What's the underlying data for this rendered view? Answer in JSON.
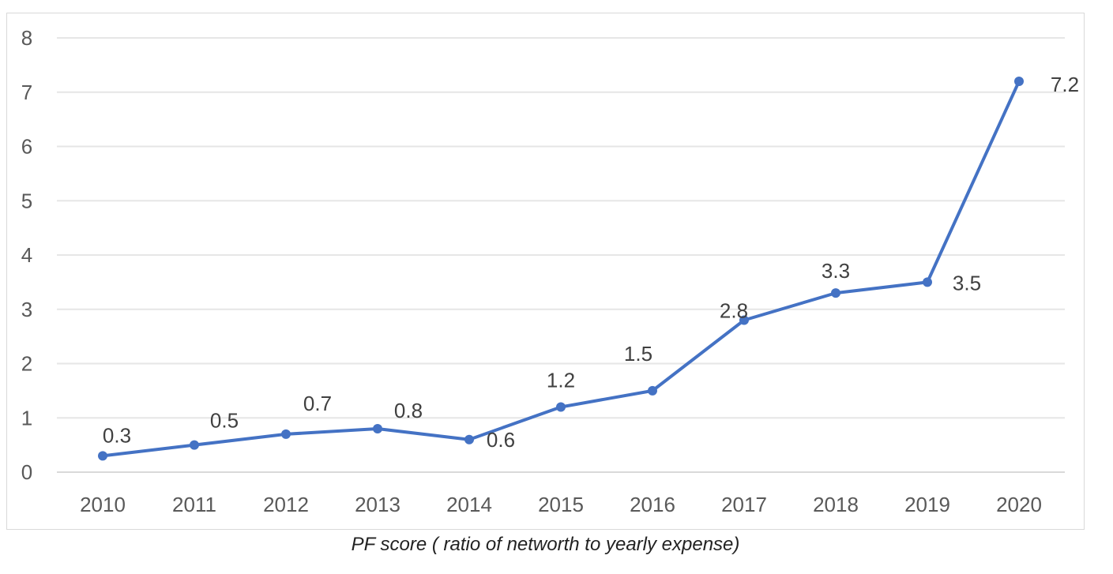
{
  "caption": "PF score ( ratio of networth to yearly expense)",
  "chart_data": {
    "type": "line",
    "title": "",
    "xlabel": "",
    "ylabel": "",
    "categories": [
      "2010",
      "2011",
      "2012",
      "2013",
      "2014",
      "2015",
      "2016",
      "2017",
      "2018",
      "2019",
      "2020"
    ],
    "series": [
      {
        "values": [
          0.3,
          0.5,
          0.7,
          0.8,
          0.6,
          1.2,
          1.5,
          2.8,
          3.3,
          3.5,
          7.2
        ],
        "labels": [
          "0.3",
          "0.5",
          "0.7",
          "0.8",
          "0.6",
          "1.2",
          "1.5",
          "2.8",
          "3.3",
          "3.5",
          "7.2"
        ],
        "color": "#4472c4"
      }
    ],
    "ylim": [
      0,
      8
    ],
    "yticks": [
      "0",
      "1",
      "2",
      "3",
      "4",
      "5",
      "6",
      "7",
      "8"
    ],
    "grid": true,
    "legend": "none"
  }
}
